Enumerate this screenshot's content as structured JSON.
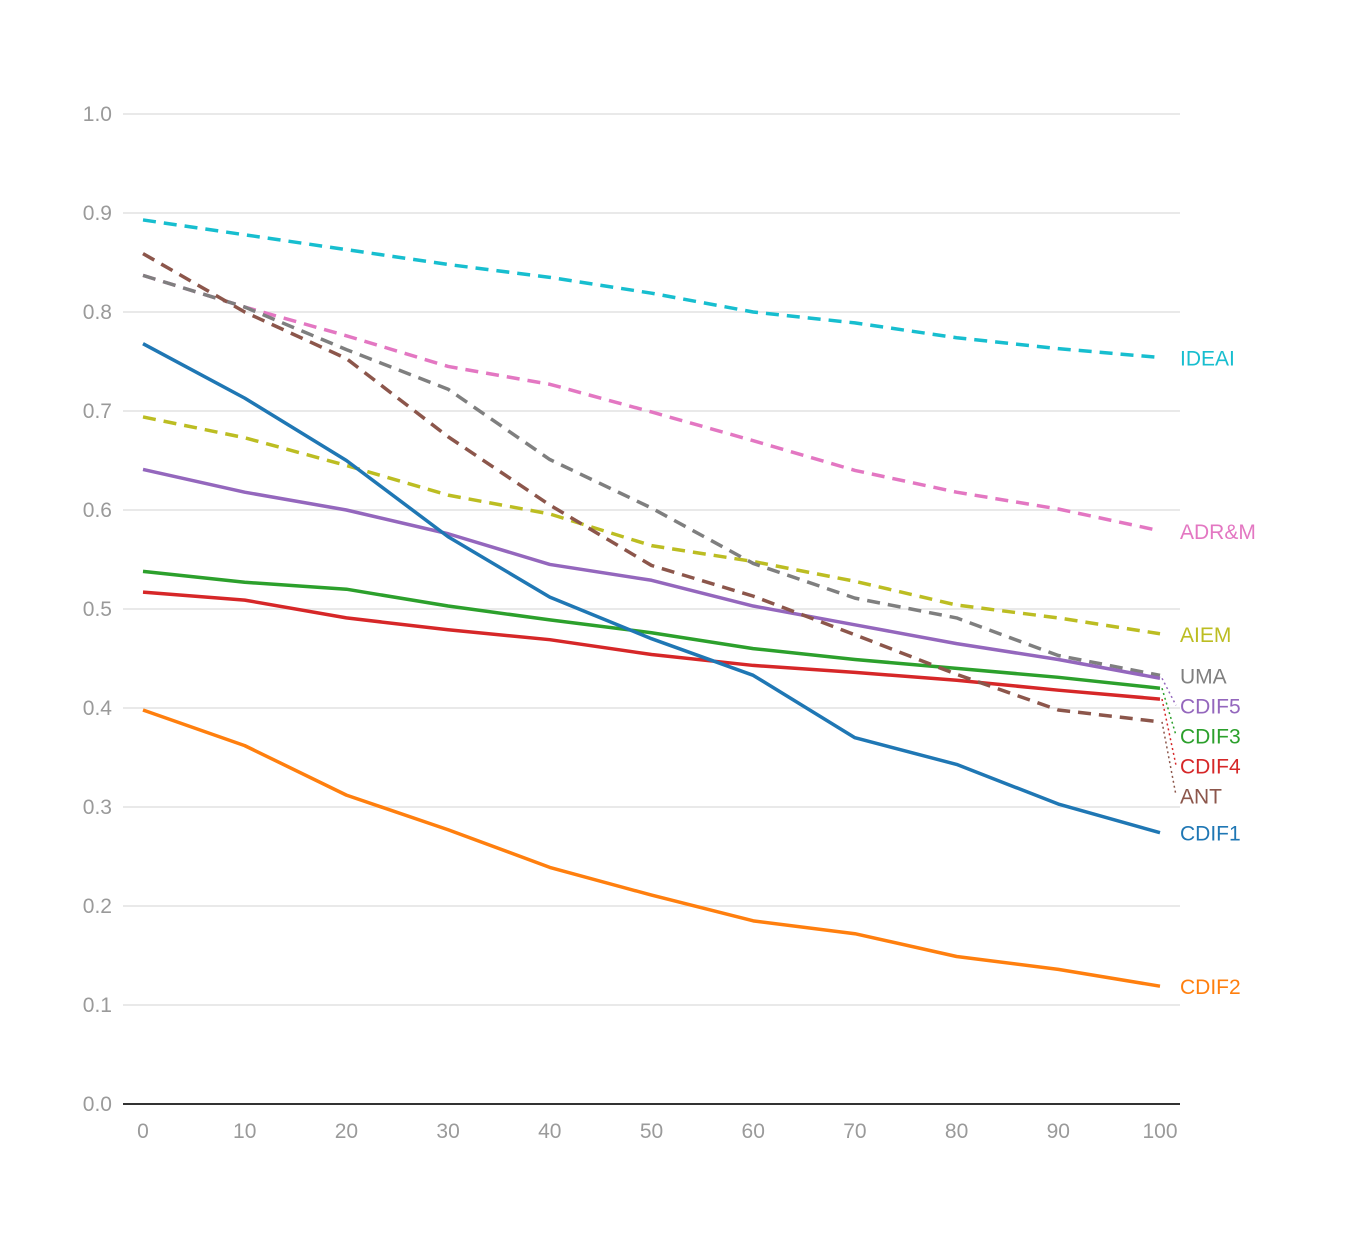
{
  "chart_data": {
    "type": "line",
    "title": "",
    "xlabel": "",
    "ylabel": "",
    "x": [
      0,
      10,
      20,
      30,
      40,
      50,
      60,
      70,
      80,
      90,
      100
    ],
    "xlim": [
      0,
      100
    ],
    "ylim": [
      0,
      1
    ],
    "x_ticks": [
      "0",
      "10",
      "20",
      "30",
      "40",
      "50",
      "60",
      "70",
      "80",
      "90",
      "100"
    ],
    "y_ticks": [
      "0.0",
      "0.1",
      "0.2",
      "0.3",
      "0.4",
      "0.5",
      "0.6",
      "0.7",
      "0.8",
      "0.9",
      "1.0"
    ],
    "grid": "horizontal",
    "legend": "direct labels at right end of lines",
    "series": [
      {
        "name": "IDEAI",
        "style": "dashed",
        "color": "#17becf",
        "values": [
          0.893,
          0.878,
          0.863,
          0.848,
          0.835,
          0.819,
          0.8,
          0.789,
          0.774,
          0.763,
          0.754
        ]
      },
      {
        "name": "ADR&M",
        "style": "dashed",
        "color": "#e377c2",
        "values": [
          0.837,
          0.805,
          0.776,
          0.745,
          0.727,
          0.699,
          0.67,
          0.64,
          0.618,
          0.601,
          0.579
        ]
      },
      {
        "name": "AIEM",
        "style": "dashed",
        "color": "#bcbd22",
        "values": [
          0.694,
          0.673,
          0.645,
          0.615,
          0.596,
          0.564,
          0.548,
          0.528,
          0.504,
          0.491,
          0.475
        ]
      },
      {
        "name": "UMA",
        "style": "dashed",
        "color": "#7f7f7f",
        "values": [
          0.837,
          0.805,
          0.762,
          0.722,
          0.651,
          0.602,
          0.546,
          0.511,
          0.491,
          0.453,
          0.433
        ]
      },
      {
        "name": "CDIF5",
        "style": "solid",
        "color": "#9467bd",
        "values": [
          0.641,
          0.618,
          0.6,
          0.576,
          0.545,
          0.529,
          0.503,
          0.484,
          0.465,
          0.449,
          0.43
        ]
      },
      {
        "name": "CDIF3",
        "style": "solid",
        "color": "#2ca02c",
        "values": [
          0.538,
          0.527,
          0.52,
          0.503,
          0.489,
          0.476,
          0.46,
          0.449,
          0.44,
          0.431,
          0.42
        ]
      },
      {
        "name": "CDIF4",
        "style": "solid",
        "color": "#d62728",
        "values": [
          0.517,
          0.509,
          0.491,
          0.479,
          0.469,
          0.454,
          0.443,
          0.436,
          0.428,
          0.418,
          0.409
        ]
      },
      {
        "name": "ANT",
        "style": "dashed",
        "color": "#8c564b",
        "values": [
          0.859,
          0.8,
          0.753,
          0.674,
          0.605,
          0.544,
          0.513,
          0.474,
          0.434,
          0.398,
          0.386
        ]
      },
      {
        "name": "CDIF1",
        "style": "solid",
        "color": "#1f77b4",
        "values": [
          0.768,
          0.713,
          0.65,
          0.573,
          0.512,
          0.47,
          0.433,
          0.37,
          0.343,
          0.303,
          0.274
        ]
      },
      {
        "name": "CDIF2",
        "style": "solid",
        "color": "#ff7f0e",
        "values": [
          0.398,
          0.362,
          0.312,
          0.277,
          0.239,
          0.211,
          0.185,
          0.172,
          0.149,
          0.136,
          0.119
        ]
      }
    ]
  }
}
